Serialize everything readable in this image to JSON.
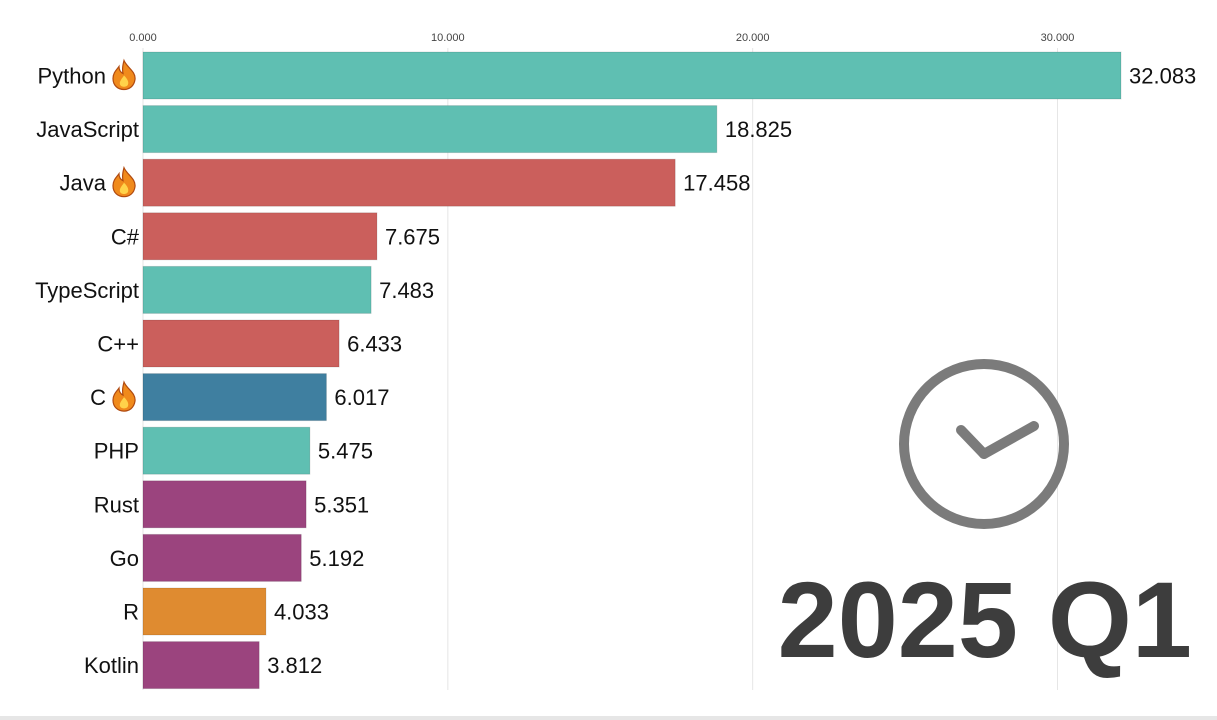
{
  "chart_data": {
    "type": "bar",
    "orientation": "horizontal",
    "title": "",
    "xlabel": "",
    "ylabel": "",
    "xlim": [
      0,
      32083
    ],
    "x_ticks": [
      0,
      10000,
      20000,
      30000
    ],
    "x_tick_labels": [
      "0.000",
      "10.000",
      "20.000",
      "30.000"
    ],
    "grid": "vertical",
    "period_label": "2025 Q1",
    "icon": "clock-icon",
    "bars": [
      {
        "label": "Python",
        "value": 32083,
        "value_label": "32.083",
        "color": "#5fbfb2",
        "flame": true
      },
      {
        "label": "JavaScript",
        "value": 18825,
        "value_label": "18.825",
        "color": "#5fbfb2",
        "flame": false
      },
      {
        "label": "Java",
        "value": 17458,
        "value_label": "17.458",
        "color": "#cb5f5c",
        "flame": true
      },
      {
        "label": "C#",
        "value": 7675,
        "value_label": "7.675",
        "color": "#cb5f5c",
        "flame": false
      },
      {
        "label": "TypeScript",
        "value": 7483,
        "value_label": "7.483",
        "color": "#5fbfb2",
        "flame": false
      },
      {
        "label": "C++",
        "value": 6433,
        "value_label": "6.433",
        "color": "#cb5f5c",
        "flame": false
      },
      {
        "label": "C",
        "value": 6017,
        "value_label": "6.017",
        "color": "#3f7fa0",
        "flame": true
      },
      {
        "label": "PHP",
        "value": 5475,
        "value_label": "5.475",
        "color": "#5fbfb2",
        "flame": false
      },
      {
        "label": "Rust",
        "value": 5351,
        "value_label": "5.351",
        "color": "#9b447e",
        "flame": false
      },
      {
        "label": "Go",
        "value": 5192,
        "value_label": "5.192",
        "color": "#9b447e",
        "flame": false
      },
      {
        "label": "R",
        "value": 4033,
        "value_label": "4.033",
        "color": "#df8b30",
        "flame": false
      },
      {
        "label": "Kotlin",
        "value": 3812,
        "value_label": "3.812",
        "color": "#9b447e",
        "flame": false
      }
    ]
  }
}
